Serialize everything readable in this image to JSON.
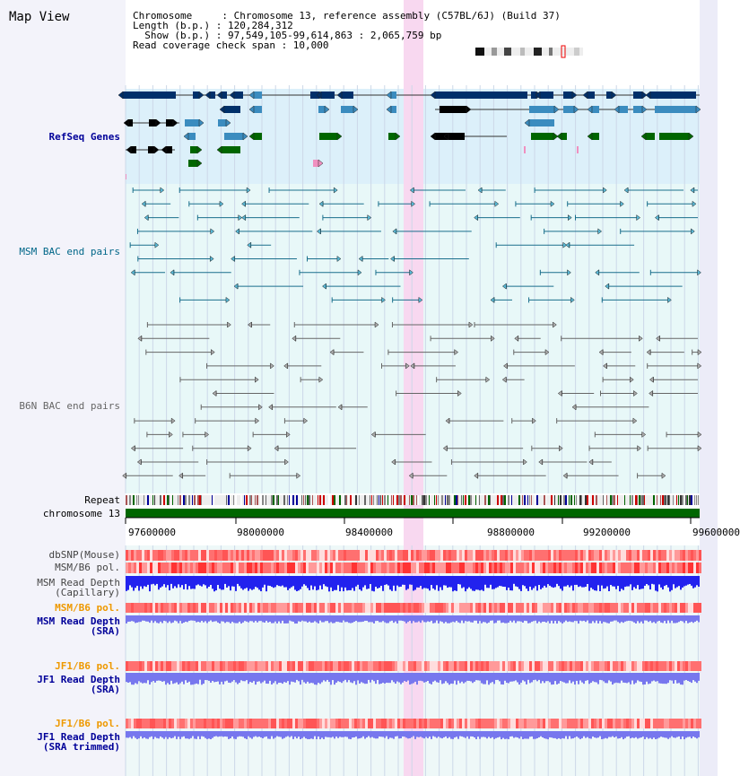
{
  "title": "Map View",
  "header": {
    "lines": [
      "Chromosome     : Chromosome 13, reference assembly (C57BL/6J) (Build 37)",
      "Length (b.p.) : 120,284,312",
      "  Show (b.p.) : 97,549,105-99,614,863 : 2,065,759 bp",
      "Read coverage check span : 10,000"
    ]
  },
  "tracks": {
    "refseq": "RefSeq Genes",
    "msm_bac": "MSM BAC end pairs",
    "b6n_bac": "B6N BAC end pairs",
    "repeat": "Repeat",
    "chromosome": "chromosome 13",
    "dbsnp": "dbSNP(Mouse)",
    "msm_pol": "MSM/B6 pol.",
    "msm_depth_cap_1": "MSM Read Depth",
    "msm_depth_cap_2": "(Capillary)",
    "msm_pol_sra": "MSM/B6 pol.",
    "msm_depth_sra_1": "MSM Read Depth",
    "msm_depth_sra_2": "(SRA)",
    "jf1_pol_1": "JF1/B6 pol.",
    "jf1_depth_1": "JF1 Read Depth",
    "jf1_depth_1b": "(SRA)",
    "jf1_pol_2": "JF1/B6 pol.",
    "jf1_depth_2": "JF1 Read Depth",
    "jf1_depth_2b": "(SRA trimmed)"
  },
  "axis": {
    "ticks": [
      "97600000",
      "98000000",
      "98400000",
      "98800000",
      "99200000",
      "99600000"
    ]
  },
  "colors": {
    "refseq_band": "#dcf0fa",
    "bac_band": "#e8f8f8",
    "highlight": "#f8d8f0",
    "msm_bac_line": "#1a6f8c",
    "b6n_bac_line": "#666666",
    "chromosome": "#006600",
    "gene_dark": "#00306a",
    "gene_mid": "#3b8cbf",
    "gene_green": "#006600",
    "depth_blue_dark": "#2222ee",
    "depth_blue_light": "#7777ee",
    "label_blue": "#000099",
    "label_teal": "#006688",
    "label_gray": "#666666",
    "label_orange": "#ee9900"
  }
}
